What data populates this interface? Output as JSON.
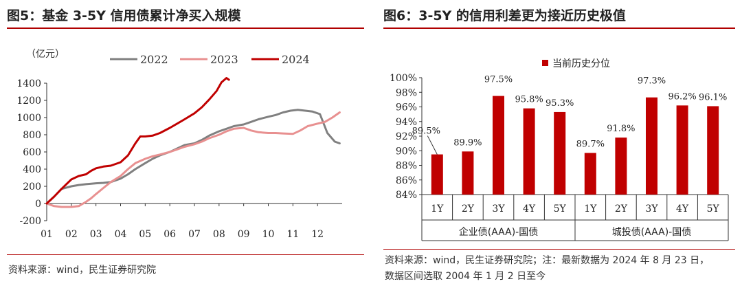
{
  "left": {
    "title": "图5：基金 3-5Y 信用债累计净买入规模",
    "source": "资料来源：wind，民生证券研究院",
    "chart_data": {
      "type": "line",
      "unit_label": "（亿元）",
      "ylim": [
        -200,
        1400
      ],
      "y_ticks": [
        -200,
        0,
        200,
        400,
        600,
        800,
        1000,
        1200,
        1400
      ],
      "x_ticks": [
        "01",
        "02",
        "03",
        "04",
        "05",
        "06",
        "07",
        "08",
        "09",
        "10",
        "11",
        "12"
      ],
      "xlim": [
        1,
        13
      ],
      "legend_position": "top-right",
      "series": [
        {
          "name": "2022",
          "color": "#808080",
          "x": [
            1.0,
            1.3,
            1.6,
            2.0,
            2.3,
            2.6,
            3.0,
            3.3,
            3.6,
            4.0,
            4.3,
            4.6,
            5.0,
            5.3,
            5.6,
            6.0,
            6.3,
            6.6,
            7.0,
            7.3,
            7.6,
            8.0,
            8.3,
            8.6,
            9.0,
            9.3,
            9.6,
            10.0,
            10.3,
            10.6,
            10.9,
            11.2,
            11.5,
            11.8,
            12.1,
            12.4,
            12.7,
            12.9
          ],
          "y": [
            0,
            80,
            170,
            200,
            215,
            225,
            235,
            240,
            250,
            290,
            340,
            400,
            470,
            520,
            560,
            600,
            640,
            680,
            700,
            740,
            790,
            840,
            870,
            900,
            920,
            950,
            980,
            1010,
            1030,
            1060,
            1080,
            1090,
            1080,
            1070,
            1040,
            820,
            720,
            700
          ]
        },
        {
          "name": "2023",
          "color": "#e89090",
          "x": [
            1.0,
            1.3,
            1.6,
            2.0,
            2.3,
            2.6,
            2.8,
            3.0,
            3.3,
            3.6,
            4.0,
            4.3,
            4.6,
            5.0,
            5.3,
            5.6,
            6.0,
            6.3,
            6.6,
            7.0,
            7.3,
            7.6,
            8.0,
            8.3,
            8.6,
            9.0,
            9.3,
            9.6,
            10.0,
            10.3,
            10.6,
            11.0,
            11.3,
            11.6,
            12.0,
            12.3,
            12.6,
            12.9
          ],
          "y": [
            0,
            -30,
            -40,
            -40,
            -30,
            20,
            60,
            110,
            180,
            250,
            320,
            400,
            470,
            520,
            550,
            570,
            600,
            630,
            660,
            690,
            720,
            760,
            800,
            840,
            870,
            880,
            850,
            830,
            820,
            820,
            815,
            810,
            850,
            900,
            930,
            950,
            1000,
            1060
          ]
        },
        {
          "name": "2024",
          "color": "#c00000",
          "x": [
            1.0,
            1.3,
            1.6,
            2.0,
            2.3,
            2.6,
            2.8,
            3.0,
            3.3,
            3.6,
            4.0,
            4.3,
            4.6,
            4.8,
            5.0,
            5.3,
            5.6,
            6.0,
            6.3,
            6.6,
            7.0,
            7.3,
            7.6,
            7.9,
            8.1,
            8.3,
            8.4
          ],
          "y": [
            0,
            80,
            170,
            280,
            320,
            340,
            380,
            410,
            430,
            440,
            480,
            560,
            700,
            780,
            780,
            790,
            820,
            880,
            930,
            980,
            1050,
            1120,
            1210,
            1310,
            1410,
            1460,
            1440
          ]
        }
      ]
    }
  },
  "right": {
    "title": "图6：3-5Y 的信用利差更为接近历史极值",
    "source_line1": "资料来源：wind，民生证券研究院；注：最新数据为 2024 年 8 月 23 日，",
    "source_line2": "数据区间选取 2004 年 1 月 2 日至今",
    "chart_data": {
      "type": "bar",
      "series": [
        {
          "name": "当前历史分位",
          "color": "#c00000"
        }
      ],
      "ylim": [
        84,
        100
      ],
      "y_ticks": [
        "84%",
        "86%",
        "88%",
        "90%",
        "92%",
        "94%",
        "96%",
        "98%",
        "100%"
      ],
      "categories": [
        "1Y",
        "2Y",
        "3Y",
        "4Y",
        "5Y",
        "1Y",
        "2Y",
        "3Y",
        "4Y",
        "5Y"
      ],
      "values": [
        89.5,
        89.9,
        97.5,
        95.8,
        95.3,
        89.7,
        91.8,
        97.3,
        96.2,
        96.1
      ],
      "data_labels": [
        "89.5%",
        "89.9%",
        "97.5%",
        "95.8%",
        "95.3%",
        "89.7%",
        "91.8%",
        "97.3%",
        "96.2%",
        "96.1%"
      ],
      "groups": [
        {
          "name": "企业债(AAA)-国债",
          "start": 0,
          "count": 5
        },
        {
          "name": "城投债(AAA)-国债",
          "start": 5,
          "count": 5
        }
      ],
      "legend_position": "top-center"
    }
  }
}
